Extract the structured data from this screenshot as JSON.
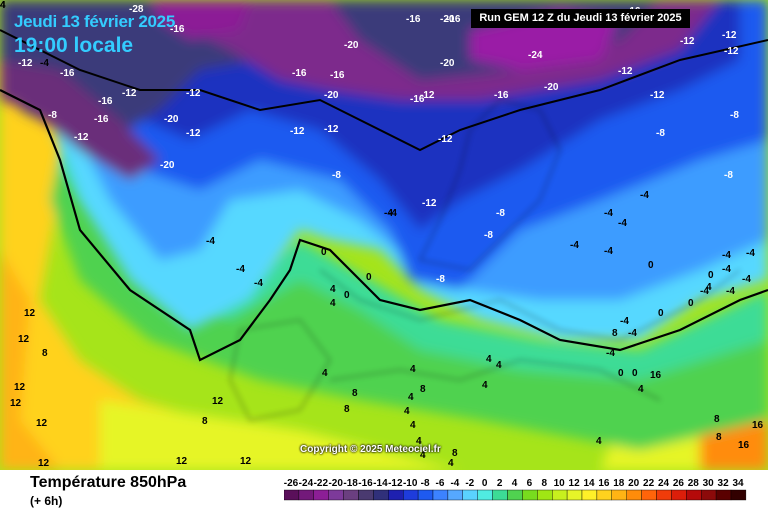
{
  "header": {
    "date": "Jeudi 13 février 2025",
    "time": "19:00 locale",
    "run": "Run GEM 12 Z du Jeudi 13 février 2025"
  },
  "footer": {
    "copyright": "Copyright © 2025 Meteociel.fr",
    "variable": "Température 850hPa",
    "offset": "(+ 6h)"
  },
  "scale": {
    "values": [
      "-26",
      "-24",
      "-22",
      "-20",
      "-18",
      "-16",
      "-14",
      "-12",
      "-10",
      "-8",
      "-6",
      "-4",
      "-2",
      "0",
      "2",
      "4",
      "6",
      "8",
      "10",
      "12",
      "14",
      "16",
      "18",
      "20",
      "22",
      "24",
      "26",
      "28",
      "30",
      "32",
      "34"
    ],
    "colors": [
      "#5a0f5a",
      "#73197a",
      "#8c1e96",
      "#7d3a9a",
      "#6b3f80",
      "#4a3a70",
      "#30307a",
      "#1e20b0",
      "#1e3cdc",
      "#1e5af0",
      "#3c82ff",
      "#56a8ff",
      "#5ad2ff",
      "#50ebe1",
      "#3cdc96",
      "#50d250",
      "#78dc1e",
      "#a0e614",
      "#c8f01e",
      "#e6f528",
      "#fff028",
      "#ffd21e",
      "#ffb414",
      "#ff8c0a",
      "#ff640a",
      "#f03c0a",
      "#dc1e0a",
      "#b40a0a",
      "#8c0a0a",
      "#5a0000",
      "#320000"
    ]
  },
  "map_labels": [
    "-28",
    "-12",
    "-16",
    "-16",
    "-12",
    "-4",
    "-8",
    "-12",
    "-16",
    "-20",
    "-20",
    "-24",
    "-20",
    "-20",
    "-12",
    "-16",
    "-16",
    "-12",
    "-16",
    "-16",
    "-12",
    "-12",
    "-4",
    "-4",
    "-4",
    "-4",
    "-12",
    "-8",
    "-16",
    "-12",
    "-20",
    "-12",
    "-8",
    "-16",
    "-20",
    "-12",
    "-12",
    "-16",
    "-20",
    "-12",
    "-16",
    "-8",
    "-8",
    "-12",
    "-4",
    "-12",
    "-8",
    "-4",
    "-4",
    "-8",
    "-8",
    "-4",
    "-4",
    "-4",
    "0",
    "4",
    "0",
    "0",
    "4",
    "0",
    "-4",
    "-4",
    "0",
    "0",
    "-4",
    "-4",
    "-4",
    "0",
    "4",
    "4",
    "4",
    "4",
    "8",
    "8",
    "8",
    "8",
    "4",
    "4",
    "4",
    "4",
    "4",
    "4",
    "8",
    "12",
    "12",
    "12",
    "12",
    "12",
    "8",
    "8",
    "8",
    "12",
    "12",
    "16",
    "16",
    "12",
    "12",
    "16",
    "4",
    "0",
    "0",
    "4",
    "4",
    "8",
    "4",
    "-4",
    "-4",
    "-4",
    "-4",
    "4",
    "4"
  ]
}
